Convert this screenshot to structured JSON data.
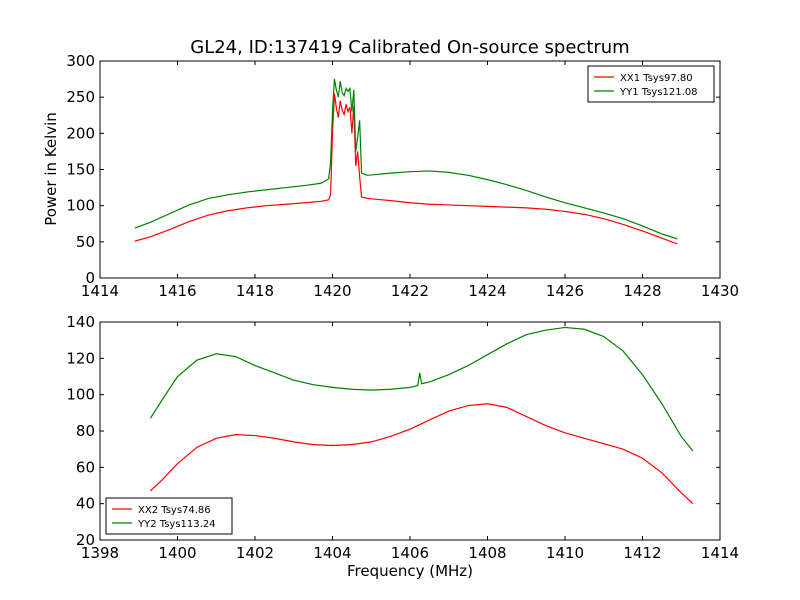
{
  "figure": {
    "title": "GL24, ID:137419 Calibrated On-source spectrum",
    "ylabel": "Power in Kelvin",
    "xlabel": "Frequency (MHz)"
  },
  "chart_data": [
    {
      "type": "line",
      "title": "GL24, ID:137419 Calibrated On-source spectrum",
      "ylabel": "Power in Kelvin",
      "xlabel": "",
      "xlim": [
        1414,
        1430
      ],
      "ylim": [
        0,
        300
      ],
      "xticks": [
        1414,
        1416,
        1418,
        1420,
        1422,
        1424,
        1426,
        1428,
        1430
      ],
      "yticks": [
        0,
        50,
        100,
        150,
        200,
        250,
        300
      ],
      "grid": false,
      "legend": "top-right",
      "series": [
        {
          "name": "XX1 Tsys97.80",
          "color": "#ff0000",
          "points": [
            [
              1414.9,
              51
            ],
            [
              1415.3,
              57
            ],
            [
              1415.8,
              67
            ],
            [
              1416.3,
              78
            ],
            [
              1416.8,
              87
            ],
            [
              1417.3,
              93
            ],
            [
              1417.8,
              97
            ],
            [
              1418.3,
              100
            ],
            [
              1418.8,
              102
            ],
            [
              1419.3,
              104
            ],
            [
              1419.7,
              106
            ],
            [
              1419.9,
              108
            ],
            [
              1419.95,
              115
            ],
            [
              1420.0,
              200
            ],
            [
              1420.05,
              255
            ],
            [
              1420.1,
              235
            ],
            [
              1420.15,
              222
            ],
            [
              1420.2,
              245
            ],
            [
              1420.25,
              232
            ],
            [
              1420.3,
              226
            ],
            [
              1420.35,
              240
            ],
            [
              1420.4,
              230
            ],
            [
              1420.45,
              236
            ],
            [
              1420.5,
              200
            ],
            [
              1420.55,
              238
            ],
            [
              1420.6,
              155
            ],
            [
              1420.65,
              175
            ],
            [
              1420.7,
              140
            ],
            [
              1420.75,
              112
            ],
            [
              1420.9,
              110
            ],
            [
              1421.5,
              107
            ],
            [
              1422.0,
              104
            ],
            [
              1422.5,
              102
            ],
            [
              1423.0,
              101
            ],
            [
              1423.5,
              100
            ],
            [
              1424.0,
              99
            ],
            [
              1424.5,
              98
            ],
            [
              1425.0,
              97
            ],
            [
              1425.5,
              95
            ],
            [
              1426.0,
              92
            ],
            [
              1426.5,
              88
            ],
            [
              1427.0,
              82
            ],
            [
              1427.5,
              74
            ],
            [
              1428.0,
              65
            ],
            [
              1428.5,
              55
            ],
            [
              1428.9,
              47
            ]
          ]
        },
        {
          "name": "YY1 Tsys121.08",
          "color": "#008000",
          "points": [
            [
              1414.9,
              69
            ],
            [
              1415.3,
              77
            ],
            [
              1415.8,
              89
            ],
            [
              1416.3,
              101
            ],
            [
              1416.8,
              110
            ],
            [
              1417.3,
              115
            ],
            [
              1417.8,
              119
            ],
            [
              1418.3,
              122
            ],
            [
              1418.8,
              125
            ],
            [
              1419.3,
              128
            ],
            [
              1419.7,
              131
            ],
            [
              1419.9,
              137
            ],
            [
              1419.95,
              160
            ],
            [
              1420.0,
              230
            ],
            [
              1420.05,
              275
            ],
            [
              1420.1,
              260
            ],
            [
              1420.15,
              250
            ],
            [
              1420.2,
              272
            ],
            [
              1420.25,
              256
            ],
            [
              1420.3,
              252
            ],
            [
              1420.35,
              262
            ],
            [
              1420.4,
              258
            ],
            [
              1420.45,
              262
            ],
            [
              1420.5,
              230
            ],
            [
              1420.55,
              260
            ],
            [
              1420.6,
              175
            ],
            [
              1420.65,
              195
            ],
            [
              1420.7,
              218
            ],
            [
              1420.75,
              145
            ],
            [
              1420.9,
              142
            ],
            [
              1421.5,
              145
            ],
            [
              1422.0,
              147
            ],
            [
              1422.5,
              148
            ],
            [
              1423.0,
              146
            ],
            [
              1423.5,
              142
            ],
            [
              1424.0,
              136
            ],
            [
              1424.5,
              129
            ],
            [
              1425.0,
              121
            ],
            [
              1425.5,
              112
            ],
            [
              1426.0,
              104
            ],
            [
              1426.5,
              97
            ],
            [
              1427.0,
              90
            ],
            [
              1427.5,
              82
            ],
            [
              1428.0,
              72
            ],
            [
              1428.5,
              61
            ],
            [
              1428.9,
              54
            ]
          ]
        }
      ]
    },
    {
      "type": "line",
      "title": "",
      "ylabel": "",
      "xlabel": "Frequency (MHz)",
      "xlim": [
        1398,
        1414
      ],
      "ylim": [
        20,
        140
      ],
      "xticks": [
        1398,
        1400,
        1402,
        1404,
        1406,
        1408,
        1410,
        1412,
        1414
      ],
      "yticks": [
        20,
        40,
        60,
        80,
        100,
        120,
        140
      ],
      "grid": false,
      "legend": "bottom-left",
      "series": [
        {
          "name": "XX2 Tsys74.86",
          "color": "#ff0000",
          "points": [
            [
              1399.3,
              47
            ],
            [
              1399.6,
              53
            ],
            [
              1400.0,
              62
            ],
            [
              1400.5,
              71
            ],
            [
              1401.0,
              76
            ],
            [
              1401.5,
              78
            ],
            [
              1402.0,
              77.5
            ],
            [
              1402.5,
              76
            ],
            [
              1403.0,
              74
            ],
            [
              1403.5,
              72.5
            ],
            [
              1404.0,
              72
            ],
            [
              1404.5,
              72.5
            ],
            [
              1405.0,
              74
            ],
            [
              1405.5,
              77
            ],
            [
              1406.0,
              81
            ],
            [
              1406.5,
              86
            ],
            [
              1407.0,
              91
            ],
            [
              1407.5,
              94
            ],
            [
              1408.0,
              95
            ],
            [
              1408.5,
              93
            ],
            [
              1409.0,
              88
            ],
            [
              1409.5,
              83
            ],
            [
              1410.0,
              79
            ],
            [
              1410.5,
              76
            ],
            [
              1411.0,
              73
            ],
            [
              1411.5,
              70
            ],
            [
              1412.0,
              65
            ],
            [
              1412.5,
              57
            ],
            [
              1413.0,
              46
            ],
            [
              1413.3,
              40
            ]
          ]
        },
        {
          "name": "YY2 Tsys113.24",
          "color": "#008000",
          "points": [
            [
              1399.3,
              87
            ],
            [
              1399.6,
              97
            ],
            [
              1400.0,
              110
            ],
            [
              1400.5,
              119
            ],
            [
              1401.0,
              122.5
            ],
            [
              1401.5,
              121
            ],
            [
              1402.0,
              116
            ],
            [
              1402.5,
              112
            ],
            [
              1403.0,
              108
            ],
            [
              1403.5,
              105.5
            ],
            [
              1404.0,
              104
            ],
            [
              1404.5,
              103
            ],
            [
              1405.0,
              102.5
            ],
            [
              1405.5,
              103
            ],
            [
              1406.0,
              104
            ],
            [
              1406.2,
              105
            ],
            [
              1406.25,
              112
            ],
            [
              1406.3,
              106
            ],
            [
              1406.5,
              107
            ],
            [
              1407.0,
              111
            ],
            [
              1407.5,
              116
            ],
            [
              1408.0,
              122
            ],
            [
              1408.5,
              128
            ],
            [
              1409.0,
              133
            ],
            [
              1409.5,
              135.5
            ],
            [
              1410.0,
              137
            ],
            [
              1410.5,
              136
            ],
            [
              1411.0,
              132
            ],
            [
              1411.5,
              124
            ],
            [
              1412.0,
              111
            ],
            [
              1412.5,
              95
            ],
            [
              1413.0,
              77
            ],
            [
              1413.3,
              69
            ]
          ]
        }
      ]
    }
  ]
}
